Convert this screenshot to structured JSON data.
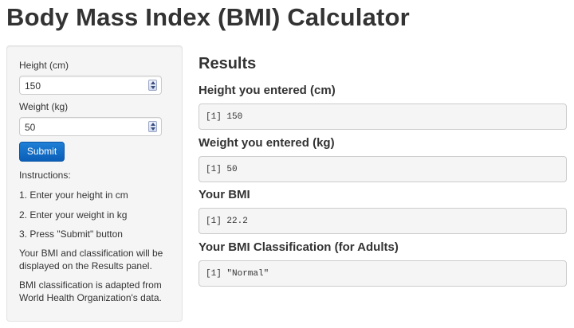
{
  "page": {
    "title": "Body Mass Index (BMI) Calculator"
  },
  "sidebar": {
    "height_label": "Height (cm)",
    "height_value": "150",
    "weight_label": "Weight (kg)",
    "weight_value": "50",
    "submit_label": "Submit",
    "instructions_heading": "Instructions:",
    "step1": "1. Enter your height in cm",
    "step2": "2. Enter your weight in kg",
    "step3": "3. Press \"Submit\" button",
    "note1": "Your BMI and classification will be displayed on the Results panel.",
    "note2": "BMI classification is adapted from World Health Organization's data."
  },
  "results": {
    "heading": "Results",
    "height_title": "Height you entered (cm)",
    "height_output": "[1] 150",
    "weight_title": "Weight you entered (kg)",
    "weight_output": "[1] 50",
    "bmi_title": "Your BMI",
    "bmi_output": "[1] 22.2",
    "class_title": "Your BMI Classification (for Adults)",
    "class_output": "[1] \"Normal\""
  },
  "colors": {
    "accent": "#1f7fd6",
    "panel_bg": "#f5f5f5",
    "text": "#333333"
  }
}
